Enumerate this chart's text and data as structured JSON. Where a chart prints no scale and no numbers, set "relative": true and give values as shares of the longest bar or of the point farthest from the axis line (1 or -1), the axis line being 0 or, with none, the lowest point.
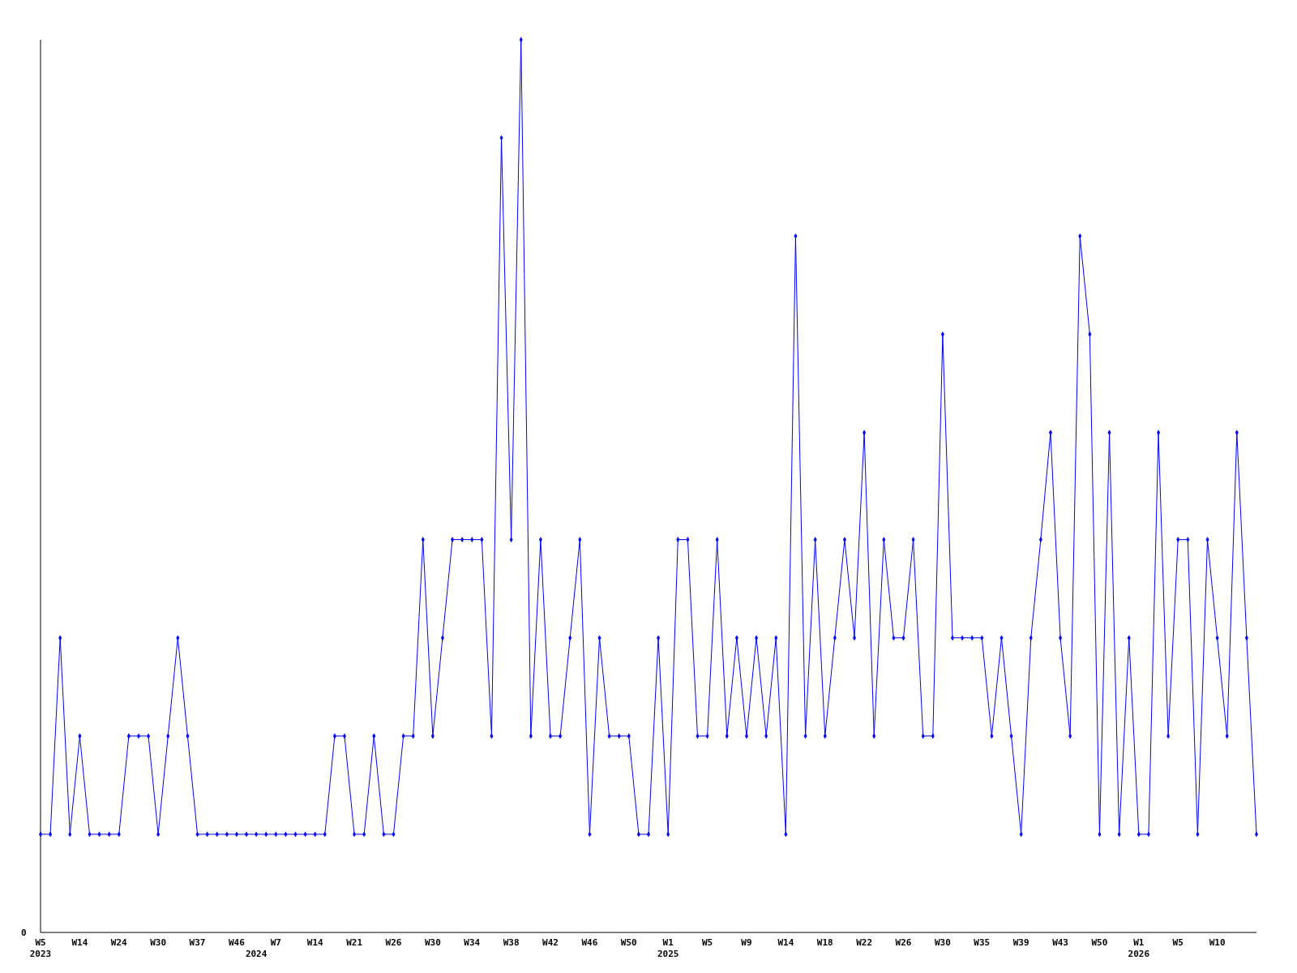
{
  "chart_data": {
    "type": "line",
    "relative": true,
    "marker": "diamond",
    "line_style": "solid",
    "annotations": [
      "0"
    ],
    "categories": [
      "W5\n2023",
      null,
      null,
      null,
      "W14",
      null,
      null,
      null,
      "W24",
      null,
      null,
      null,
      "W30",
      null,
      null,
      null,
      "W37",
      null,
      null,
      null,
      "W46",
      null,
      "\n2024",
      null,
      "W7",
      null,
      null,
      null,
      "W14",
      null,
      null,
      null,
      "W21",
      null,
      null,
      null,
      "W26",
      null,
      null,
      null,
      "W30",
      null,
      null,
      null,
      "W34",
      null,
      null,
      null,
      "W38",
      null,
      null,
      null,
      "W42",
      null,
      null,
      null,
      "W46",
      null,
      null,
      null,
      "W50",
      null,
      null,
      null,
      "W1\n2025",
      null,
      null,
      null,
      "W5",
      null,
      null,
      null,
      "W9",
      null,
      null,
      null,
      "W14",
      null,
      null,
      null,
      "W18",
      null,
      null,
      null,
      "W22",
      null,
      null,
      null,
      "W26",
      null,
      null,
      null,
      "W30",
      null,
      null,
      null,
      "W35",
      null,
      null,
      null,
      "W39",
      null,
      null,
      null,
      "W43",
      null,
      null,
      null,
      "W50",
      null,
      null,
      null,
      "W1\n2026",
      null,
      null,
      null,
      "W5",
      null,
      null,
      null,
      "W10",
      null,
      null,
      null,
      null
    ],
    "series": [
      {
        "color": "#0000ff",
        "values": [
          0.11,
          0.11,
          0.33,
          0.11,
          0.22,
          0.11,
          0.11,
          0.11,
          0.11,
          0.22,
          0.22,
          0.22,
          0.11,
          0.22,
          0.33,
          0.22,
          0.11,
          0.11,
          0.11,
          0.11,
          0.11,
          0.11,
          0.11,
          0.11,
          0.11,
          0.11,
          0.11,
          0.11,
          0.11,
          0.11,
          0.22,
          0.22,
          0.11,
          0.11,
          0.22,
          0.11,
          0.11,
          0.22,
          0.22,
          0.44,
          0.22,
          0.33,
          0.44,
          0.44,
          0.44,
          0.44,
          0.22,
          0.89,
          0.44,
          1,
          0.22,
          0.44,
          0.22,
          0.22,
          0.33,
          0.44,
          0.11,
          0.33,
          0.22,
          0.22,
          0.22,
          0.11,
          0.11,
          0.33,
          0.11,
          0.44,
          0.44,
          0.22,
          0.22,
          0.44,
          0.22,
          0.33,
          0.22,
          0.33,
          0.22,
          0.33,
          0.11,
          0.78,
          0.22,
          0.44,
          0.22,
          0.33,
          0.44,
          0.33,
          0.56,
          0.22,
          0.44,
          0.33,
          0.33,
          0.44,
          0.22,
          0.22,
          0.67,
          0.33,
          0.33,
          0.33,
          0.33,
          0.22,
          0.33,
          0.22,
          0.11,
          0.33,
          0.44,
          0.56,
          0.33,
          0.22,
          0.78,
          0.67,
          0.11,
          0.56,
          0.11,
          0.33,
          0.11,
          0.11,
          0.56,
          0.22,
          0.44,
          0.44,
          0.11,
          0.44,
          0.33,
          0.22,
          0.56,
          0.33,
          0.11
        ]
      }
    ]
  }
}
